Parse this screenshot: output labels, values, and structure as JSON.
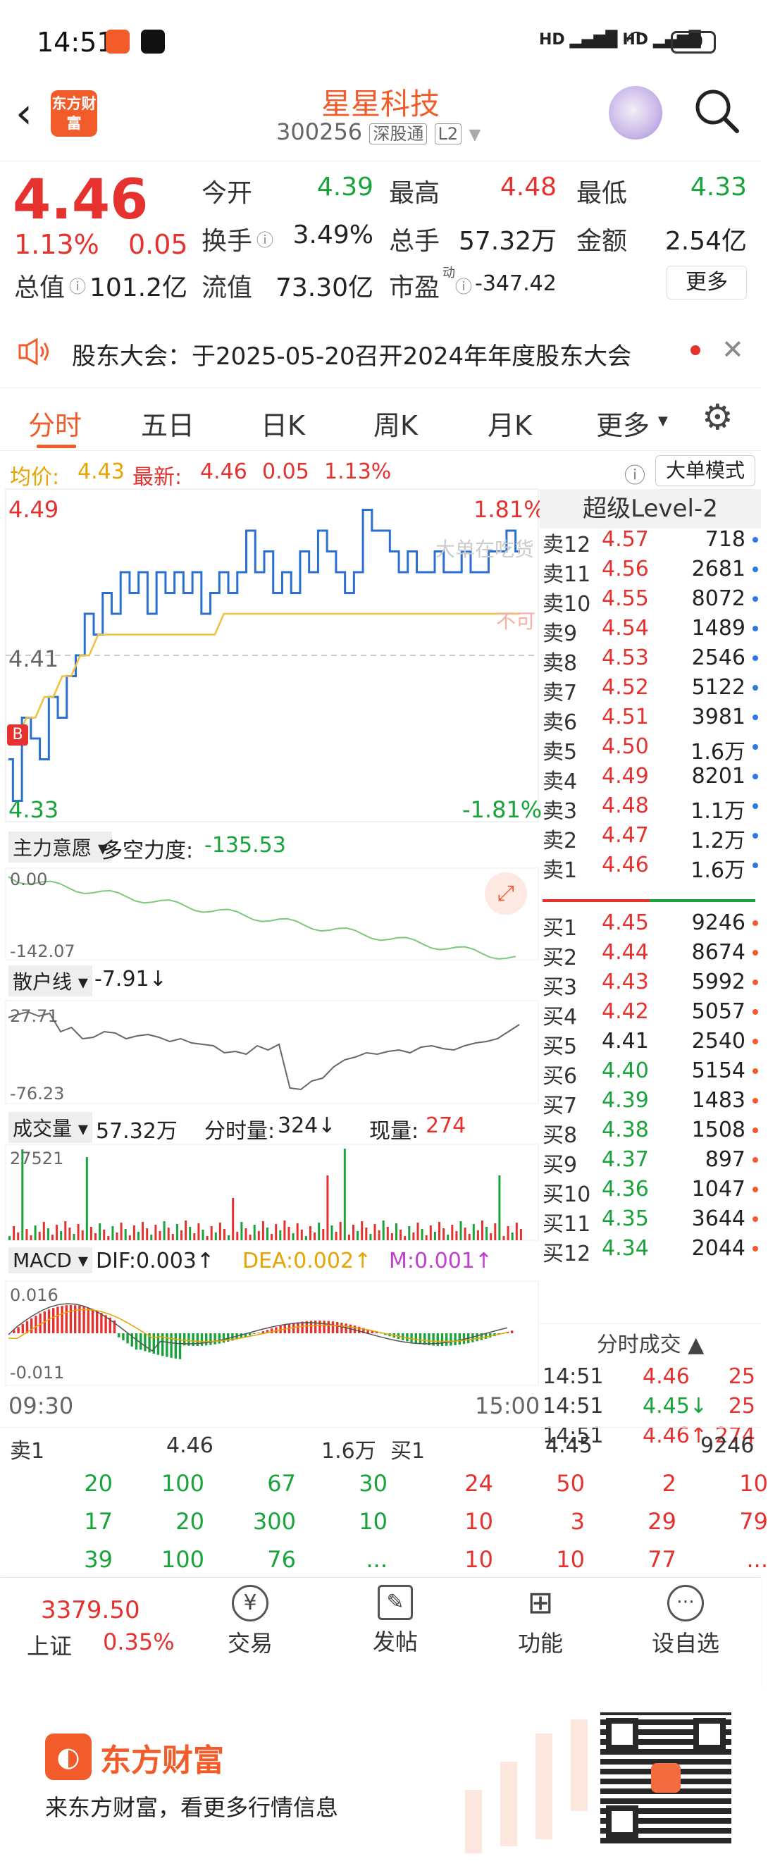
{
  "status_bar": {
    "time": "14:51",
    "battery": "70",
    "net1": "HD",
    "net2": "HD"
  },
  "header": {
    "logo_text": "东方财富",
    "stock_name": "星星科技",
    "stock_code": "300256",
    "exchange_tag": "深股通",
    "level_tag": "L2"
  },
  "quote": {
    "price": "4.46",
    "change_pct": "1.13%",
    "change_amt": "0.05",
    "open_label": "今开",
    "open": "4.39",
    "high_label": "最高",
    "high": "4.48",
    "low_label": "最低",
    "low": "4.33",
    "turnover_label": "换手",
    "turnover": "3.49%",
    "volume_label": "总手",
    "volume": "57.32万",
    "amount_label": "金额",
    "amount": "2.54亿",
    "mcap_label": "总值",
    "mcap": "101.2亿",
    "float_label": "流值",
    "float_cap": "73.30亿",
    "pe_label": "市盈",
    "pe_sup": "动",
    "pe": "-347.42",
    "more": "更多"
  },
  "notice": {
    "text": "股东大会：于2025-05-20召开2024年年度股东大会"
  },
  "tabs": [
    "分时",
    "五日",
    "日K",
    "周K",
    "月K",
    "更多"
  ],
  "info_bar": {
    "avg_label": "均价:",
    "avg": "4.43",
    "latest_label": "最新:",
    "latest": "4.46",
    "chg": "0.05",
    "pct": "1.13%",
    "mode_btn": "大单模式"
  },
  "chart_data": {
    "type": "line",
    "price_axis": {
      "high": "4.49",
      "mid": "4.41",
      "low": "4.33",
      "pct_high": "1.81%",
      "pct_low": "-1.81%"
    },
    "ylim": [
      4.33,
      4.49
    ],
    "price_series": [
      4.36,
      4.34,
      4.38,
      4.37,
      4.36,
      4.39,
      4.38,
      4.4,
      4.41,
      4.43,
      4.42,
      4.44,
      4.43,
      4.45,
      4.44,
      4.45,
      4.43,
      4.45,
      4.44,
      4.45,
      4.44,
      4.45,
      4.43,
      4.44,
      4.45,
      4.44,
      4.45,
      4.47,
      4.45,
      4.46,
      4.44,
      4.45,
      4.44,
      4.46,
      4.45,
      4.47,
      4.46,
      4.45,
      4.44,
      4.45,
      4.48,
      4.47,
      4.47,
      4.46,
      4.45,
      4.46,
      4.45,
      4.45,
      4.46,
      4.45,
      4.45,
      4.46,
      4.45,
      4.45,
      4.46,
      4.46,
      4.47,
      4.46
    ],
    "avg_series": [
      4.37,
      4.37,
      4.38,
      4.38,
      4.39,
      4.39,
      4.4,
      4.4,
      4.41,
      4.41,
      4.42,
      4.42,
      4.42,
      4.42,
      4.42,
      4.42,
      4.42,
      4.42,
      4.42,
      4.42,
      4.42,
      4.42,
      4.42,
      4.42,
      4.43,
      4.43,
      4.43,
      4.43,
      4.43,
      4.43,
      4.43,
      4.43,
      4.43,
      4.43,
      4.43,
      4.43,
      4.43,
      4.43,
      4.43,
      4.43,
      4.43,
      4.43,
      4.43,
      4.43,
      4.43,
      4.43,
      4.43,
      4.43,
      4.43,
      4.43,
      4.43,
      4.43,
      4.43,
      4.43,
      4.43,
      4.43,
      4.43,
      4.43
    ],
    "xlabel_start": "09:30",
    "xlabel_end": "15:00",
    "overlay_text": "大单在吃货",
    "overlay_text2": "不可"
  },
  "indicators": {
    "main_force": {
      "label": "主力意愿",
      "sub": "多空力度:",
      "value": "-135.53",
      "top": "0.00",
      "bottom": "-142.07"
    },
    "retail": {
      "label": "散户线",
      "value": "-7.91↓",
      "top": "27.71",
      "bottom": "-76.23"
    },
    "volume": {
      "label": "成交量",
      "total": "57.32万",
      "tick_label": "分时量:",
      "tick": "324↓",
      "cur_label": "现量:",
      "cur": "274",
      "max": "27521"
    },
    "macd": {
      "label": "MACD",
      "dif": "DIF:0.003↑",
      "dea": "DEA:0.002↑",
      "m": "M:0.001↑",
      "top": "0.016",
      "bottom": "-0.011"
    }
  },
  "book": {
    "title": "超级Level-2",
    "asks": [
      {
        "l": "卖12",
        "p": "4.57",
        "v": "718"
      },
      {
        "l": "卖11",
        "p": "4.56",
        "v": "2681"
      },
      {
        "l": "卖10",
        "p": "4.55",
        "v": "8072"
      },
      {
        "l": "卖9",
        "p": "4.54",
        "v": "1489"
      },
      {
        "l": "卖8",
        "p": "4.53",
        "v": "2546"
      },
      {
        "l": "卖7",
        "p": "4.52",
        "v": "5122"
      },
      {
        "l": "卖6",
        "p": "4.51",
        "v": "3981"
      },
      {
        "l": "卖5",
        "p": "4.50",
        "v": "1.6万"
      },
      {
        "l": "卖4",
        "p": "4.49",
        "v": "8201"
      },
      {
        "l": "卖3",
        "p": "4.48",
        "v": "1.1万"
      },
      {
        "l": "卖2",
        "p": "4.47",
        "v": "1.2万"
      },
      {
        "l": "卖1",
        "p": "4.46",
        "v": "1.6万"
      }
    ],
    "bids": [
      {
        "l": "买1",
        "p": "4.45",
        "v": "9246"
      },
      {
        "l": "买2",
        "p": "4.44",
        "v": "8674"
      },
      {
        "l": "买3",
        "p": "4.43",
        "v": "5992"
      },
      {
        "l": "买4",
        "p": "4.42",
        "v": "5057"
      },
      {
        "l": "买5",
        "p": "4.41",
        "v": "2540"
      },
      {
        "l": "买6",
        "p": "4.40",
        "v": "5154"
      },
      {
        "l": "买7",
        "p": "4.39",
        "v": "1483"
      },
      {
        "l": "买8",
        "p": "4.38",
        "v": "1508"
      },
      {
        "l": "买9",
        "p": "4.37",
        "v": "897"
      },
      {
        "l": "买10",
        "p": "4.36",
        "v": "1047"
      },
      {
        "l": "买11",
        "p": "4.35",
        "v": "3644"
      },
      {
        "l": "买12",
        "p": "4.34",
        "v": "2044"
      }
    ]
  },
  "trades": {
    "title": "分时成交",
    "rows": [
      {
        "t": "14:51",
        "p": "4.46",
        "v": "25"
      },
      {
        "t": "14:51",
        "p": "4.45↓",
        "v": "25"
      },
      {
        "t": "14:51",
        "p": "4.46↑",
        "v": "274"
      }
    ]
  },
  "level1": {
    "sell_label": "卖1",
    "sell_price": "4.46",
    "sell_vol": "1.6万",
    "buy_label": "买1",
    "buy_price": "4.45",
    "buy_vol": "9246",
    "sell_queue": [
      [
        "20",
        "100",
        "67",
        "30"
      ],
      [
        "17",
        "20",
        "300",
        "10"
      ],
      [
        "39",
        "100",
        "76",
        "..."
      ]
    ],
    "buy_queue": [
      [
        "24",
        "50",
        "2",
        "10"
      ],
      [
        "10",
        "3",
        "29",
        "79"
      ],
      [
        "10",
        "10",
        "77",
        "..."
      ]
    ]
  },
  "dock": {
    "index_value": "3379.50",
    "index_name": "上证",
    "index_pct": "0.35%",
    "trade": "交易",
    "post": "发帖",
    "func": "功能",
    "watch": "设自选"
  },
  "footer": {
    "brand": "东方财富",
    "slogan": "来东方财富，看更多行情信息"
  }
}
